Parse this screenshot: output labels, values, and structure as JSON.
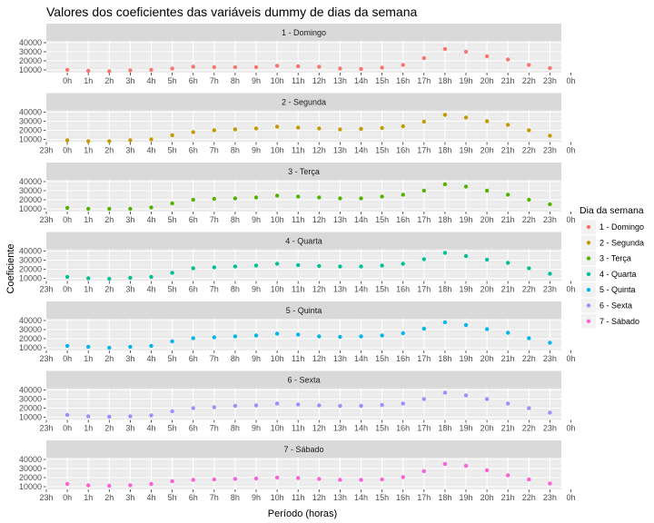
{
  "chart_data": {
    "type": "scatter",
    "title": "Valores dos coeficientes das variáveis dummy de dias da semana",
    "xlabel": "Período (horas)",
    "ylabel": "Coeficiente",
    "x_tick_labels": [
      "23h",
      "0h",
      "1h",
      "2h",
      "3h",
      "4h",
      "5h",
      "6h",
      "7h",
      "8h",
      "9h",
      "10h",
      "11h",
      "12h",
      "13h",
      "14h",
      "15h",
      "16h",
      "17h",
      "18h",
      "19h",
      "20h",
      "21h",
      "22h",
      "23h",
      "0h"
    ],
    "x_tick_labels_first_panel": [
      "0h",
      "1h",
      "2h",
      "3h",
      "4h",
      "5h",
      "6h",
      "7h",
      "8h",
      "9h",
      "10h",
      "11h",
      "12h",
      "13h",
      "14h",
      "15h",
      "16h",
      "17h",
      "18h",
      "19h",
      "20h",
      "21h",
      "22h",
      "23h",
      "0h"
    ],
    "y_ticks": [
      10000,
      20000,
      30000,
      40000
    ],
    "y_tick_labels": [
      "10000",
      "20000",
      "30000",
      "40000"
    ],
    "ylim": [
      7000,
      42000
    ],
    "legend": {
      "title": "Dia da semana",
      "placement": "right",
      "entries": [
        "1 - Domingo",
        "2 - Segunda",
        "3 - Terça",
        "4 - Quarta",
        "5 - Quinta",
        "6 - Sexta",
        "7 - Sábado"
      ]
    },
    "grid": true,
    "facets": [
      {
        "name": "1 - Domingo",
        "color": "#F8766D",
        "points": [
          {
            "x": "0h",
            "y": 10000
          },
          {
            "x": "1h",
            "y": 9000
          },
          {
            "x": "2h",
            "y": 8500
          },
          {
            "x": "3h",
            "y": 9500
          },
          {
            "x": "4h",
            "y": 10000
          },
          {
            "x": "5h",
            "y": 11500
          },
          {
            "x": "6h",
            "y": 13500
          },
          {
            "x": "7h",
            "y": 13000
          },
          {
            "x": "8h",
            "y": 13000
          },
          {
            "x": "9h",
            "y": 13000
          },
          {
            "x": "10h",
            "y": 14500
          },
          {
            "x": "11h",
            "y": 14000
          },
          {
            "x": "12h",
            "y": 13500
          },
          {
            "x": "13h",
            "y": 11500
          },
          {
            "x": "14h",
            "y": 11000
          },
          {
            "x": "15h",
            "y": 12500
          },
          {
            "x": "16h",
            "y": 15500
          },
          {
            "x": "17h",
            "y": 23000
          },
          {
            "x": "18h",
            "y": 33000
          },
          {
            "x": "19h",
            "y": 30000
          },
          {
            "x": "20h",
            "y": 25000
          },
          {
            "x": "21h",
            "y": 21500
          },
          {
            "x": "22h",
            "y": 15500
          },
          {
            "x": "23h",
            "y": 12000
          }
        ]
      },
      {
        "name": "2 - Segunda",
        "color": "#C49A00",
        "points": [
          {
            "x": "0h",
            "y": 9000
          },
          {
            "x": "1h",
            "y": 8000
          },
          {
            "x": "2h",
            "y": 8000
          },
          {
            "x": "3h",
            "y": 9000
          },
          {
            "x": "4h",
            "y": 10000
          },
          {
            "x": "5h",
            "y": 14500
          },
          {
            "x": "6h",
            "y": 18000
          },
          {
            "x": "7h",
            "y": 20000
          },
          {
            "x": "8h",
            "y": 21000
          },
          {
            "x": "9h",
            "y": 22000
          },
          {
            "x": "10h",
            "y": 24000
          },
          {
            "x": "11h",
            "y": 23000
          },
          {
            "x": "12h",
            "y": 22000
          },
          {
            "x": "13h",
            "y": 21000
          },
          {
            "x": "14h",
            "y": 21500
          },
          {
            "x": "15h",
            "y": 22500
          },
          {
            "x": "16h",
            "y": 24500
          },
          {
            "x": "17h",
            "y": 29500
          },
          {
            "x": "18h",
            "y": 37000
          },
          {
            "x": "19h",
            "y": 34000
          },
          {
            "x": "20h",
            "y": 30000
          },
          {
            "x": "21h",
            "y": 26000
          },
          {
            "x": "22h",
            "y": 20000
          },
          {
            "x": "23h",
            "y": 14000
          }
        ]
      },
      {
        "name": "3 - Terça",
        "color": "#53B400",
        "points": [
          {
            "x": "0h",
            "y": 11000
          },
          {
            "x": "1h",
            "y": 10000
          },
          {
            "x": "2h",
            "y": 10000
          },
          {
            "x": "3h",
            "y": 10000
          },
          {
            "x": "4h",
            "y": 11500
          },
          {
            "x": "5h",
            "y": 16000
          },
          {
            "x": "6h",
            "y": 20000
          },
          {
            "x": "7h",
            "y": 21000
          },
          {
            "x": "8h",
            "y": 21500
          },
          {
            "x": "9h",
            "y": 22500
          },
          {
            "x": "10h",
            "y": 24500
          },
          {
            "x": "11h",
            "y": 23500
          },
          {
            "x": "12h",
            "y": 22500
          },
          {
            "x": "13h",
            "y": 21500
          },
          {
            "x": "14h",
            "y": 21500
          },
          {
            "x": "15h",
            "y": 23500
          },
          {
            "x": "16h",
            "y": 25500
          },
          {
            "x": "17h",
            "y": 30000
          },
          {
            "x": "18h",
            "y": 37000
          },
          {
            "x": "19h",
            "y": 34500
          },
          {
            "x": "20h",
            "y": 30000
          },
          {
            "x": "21h",
            "y": 25500
          },
          {
            "x": "22h",
            "y": 20000
          },
          {
            "x": "23h",
            "y": 15000
          }
        ]
      },
      {
        "name": "4 - Quarta",
        "color": "#00C094",
        "points": [
          {
            "x": "0h",
            "y": 11500
          },
          {
            "x": "1h",
            "y": 10000
          },
          {
            "x": "2h",
            "y": 9500
          },
          {
            "x": "3h",
            "y": 10500
          },
          {
            "x": "4h",
            "y": 11500
          },
          {
            "x": "5h",
            "y": 16000
          },
          {
            "x": "6h",
            "y": 21000
          },
          {
            "x": "7h",
            "y": 22000
          },
          {
            "x": "8h",
            "y": 23000
          },
          {
            "x": "9h",
            "y": 24000
          },
          {
            "x": "10h",
            "y": 26000
          },
          {
            "x": "11h",
            "y": 24500
          },
          {
            "x": "12h",
            "y": 23500
          },
          {
            "x": "13h",
            "y": 23000
          },
          {
            "x": "14h",
            "y": 23000
          },
          {
            "x": "15h",
            "y": 24000
          },
          {
            "x": "16h",
            "y": 26000
          },
          {
            "x": "17h",
            "y": 31000
          },
          {
            "x": "18h",
            "y": 38000
          },
          {
            "x": "19h",
            "y": 34500
          },
          {
            "x": "20h",
            "y": 30500
          },
          {
            "x": "21h",
            "y": 27000
          },
          {
            "x": "22h",
            "y": 21000
          },
          {
            "x": "23h",
            "y": 15000
          }
        ]
      },
      {
        "name": "5 - Quinta",
        "color": "#00B6EB",
        "points": [
          {
            "x": "0h",
            "y": 12000
          },
          {
            "x": "1h",
            "y": 11000
          },
          {
            "x": "2h",
            "y": 10000
          },
          {
            "x": "3h",
            "y": 11000
          },
          {
            "x": "4h",
            "y": 12000
          },
          {
            "x": "5h",
            "y": 17000
          },
          {
            "x": "6h",
            "y": 20500
          },
          {
            "x": "7h",
            "y": 21500
          },
          {
            "x": "8h",
            "y": 22500
          },
          {
            "x": "9h",
            "y": 23500
          },
          {
            "x": "10h",
            "y": 25500
          },
          {
            "x": "11h",
            "y": 24500
          },
          {
            "x": "12h",
            "y": 22500
          },
          {
            "x": "13h",
            "y": 22000
          },
          {
            "x": "14h",
            "y": 22500
          },
          {
            "x": "15h",
            "y": 23500
          },
          {
            "x": "16h",
            "y": 26000
          },
          {
            "x": "17h",
            "y": 31000
          },
          {
            "x": "18h",
            "y": 38000
          },
          {
            "x": "19h",
            "y": 35000
          },
          {
            "x": "20h",
            "y": 30500
          },
          {
            "x": "21h",
            "y": 26500
          },
          {
            "x": "22h",
            "y": 20500
          },
          {
            "x": "23h",
            "y": 15500
          }
        ]
      },
      {
        "name": "6 - Sexta",
        "color": "#A58AFF",
        "points": [
          {
            "x": "0h",
            "y": 12500
          },
          {
            "x": "1h",
            "y": 11000
          },
          {
            "x": "2h",
            "y": 10500
          },
          {
            "x": "3h",
            "y": 11000
          },
          {
            "x": "4h",
            "y": 12000
          },
          {
            "x": "5h",
            "y": 16500
          },
          {
            "x": "6h",
            "y": 20000
          },
          {
            "x": "7h",
            "y": 21000
          },
          {
            "x": "8h",
            "y": 22500
          },
          {
            "x": "9h",
            "y": 23000
          },
          {
            "x": "10h",
            "y": 25000
          },
          {
            "x": "11h",
            "y": 24000
          },
          {
            "x": "12h",
            "y": 23000
          },
          {
            "x": "13h",
            "y": 22500
          },
          {
            "x": "14h",
            "y": 22500
          },
          {
            "x": "15h",
            "y": 23500
          },
          {
            "x": "16h",
            "y": 25000
          },
          {
            "x": "17h",
            "y": 30000
          },
          {
            "x": "18h",
            "y": 37000
          },
          {
            "x": "19h",
            "y": 34000
          },
          {
            "x": "20h",
            "y": 30000
          },
          {
            "x": "21h",
            "y": 25000
          },
          {
            "x": "22h",
            "y": 20000
          },
          {
            "x": "23h",
            "y": 15000
          }
        ]
      },
      {
        "name": "7 - Sábado",
        "color": "#FB61D7",
        "points": [
          {
            "x": "0h",
            "y": 13000
          },
          {
            "x": "1h",
            "y": 11500
          },
          {
            "x": "2h",
            "y": 11000
          },
          {
            "x": "3h",
            "y": 11500
          },
          {
            "x": "4h",
            "y": 13000
          },
          {
            "x": "5h",
            "y": 16000
          },
          {
            "x": "6h",
            "y": 17500
          },
          {
            "x": "7h",
            "y": 18000
          },
          {
            "x": "8h",
            "y": 18500
          },
          {
            "x": "9h",
            "y": 19000
          },
          {
            "x": "10h",
            "y": 20000
          },
          {
            "x": "11h",
            "y": 19500
          },
          {
            "x": "12h",
            "y": 18500
          },
          {
            "x": "13h",
            "y": 17500
          },
          {
            "x": "14h",
            "y": 17500
          },
          {
            "x": "15h",
            "y": 18000
          },
          {
            "x": "16h",
            "y": 20500
          },
          {
            "x": "17h",
            "y": 27000
          },
          {
            "x": "18h",
            "y": 35000
          },
          {
            "x": "19h",
            "y": 33000
          },
          {
            "x": "20h",
            "y": 28000
          },
          {
            "x": "21h",
            "y": 22500
          },
          {
            "x": "22h",
            "y": 18000
          },
          {
            "x": "23h",
            "y": 13500
          }
        ]
      }
    ]
  }
}
